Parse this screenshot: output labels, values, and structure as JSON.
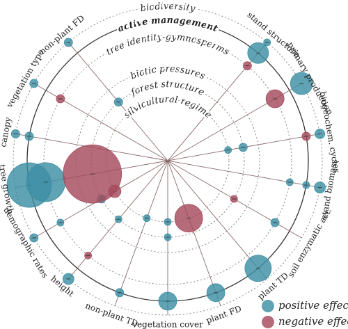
{
  "chart_data": {
    "type": "radial-bubble",
    "rings": [
      {
        "name": "silvicultural regime",
        "solid": false
      },
      {
        "name": "forest structure",
        "solid": false
      },
      {
        "name": "biotic pressures",
        "solid": false
      },
      {
        "name": "tree identity-gymnosperms",
        "solid": false
      },
      {
        "name": "active management",
        "solid": true
      },
      {
        "name": "biodiversity",
        "solid": false
      }
    ],
    "spokes": [
      "stand structure",
      "primary production",
      "biogeochem. cycles",
      "stand biomass",
      "soil enzymatic act.",
      "plant TD",
      "plant FD",
      "vegetation cover",
      "non-plant TD",
      "height",
      "demographic rates",
      "tree growth",
      "canopy",
      "vegetation type",
      "non-plant FD"
    ],
    "series": [
      {
        "name": "positive effect",
        "color": "#3d8fa3",
        "points": [
          {
            "spoke": 0,
            "ring": 5,
            "size": 5
          },
          {
            "spoke": 0,
            "ring": 4,
            "size": 15
          },
          {
            "spoke": 1,
            "ring": 5,
            "size": 16
          },
          {
            "spoke": 2,
            "ring": 5,
            "size": 7
          },
          {
            "spoke": 2,
            "ring": 1,
            "size": 6
          },
          {
            "spoke": 2,
            "ring": 0,
            "size": 5
          },
          {
            "spoke": 3,
            "ring": 5,
            "size": 8
          },
          {
            "spoke": 3,
            "ring": 4,
            "size": 5
          },
          {
            "spoke": 3,
            "ring": 3,
            "size": 5
          },
          {
            "spoke": 4,
            "ring": 3,
            "size": 6
          },
          {
            "spoke": 5,
            "ring": 4,
            "size": 19
          },
          {
            "spoke": 6,
            "ring": 4,
            "size": 13
          },
          {
            "spoke": 7,
            "ring": 4,
            "size": 13
          },
          {
            "spoke": 7,
            "ring": 1,
            "size": 5
          },
          {
            "spoke": 7,
            "ring": 0,
            "size": 5
          },
          {
            "spoke": 8,
            "ring": 4,
            "size": 6
          },
          {
            "spoke": 8,
            "ring": 0,
            "size": 5
          },
          {
            "spoke": 9,
            "ring": 5,
            "size": 8
          },
          {
            "spoke": 9,
            "ring": 1,
            "size": 5
          },
          {
            "spoke": 10,
            "ring": 5,
            "size": 6
          },
          {
            "spoke": 10,
            "ring": 3,
            "size": 5
          },
          {
            "spoke": 10,
            "ring": 1,
            "size": 6
          },
          {
            "spoke": 11,
            "ring": 4,
            "size": 32
          },
          {
            "spoke": 11,
            "ring": 3,
            "size": 28
          },
          {
            "spoke": 12,
            "ring": 5,
            "size": 6
          },
          {
            "spoke": 12,
            "ring": 4,
            "size": 6
          },
          {
            "spoke": 13,
            "ring": 5,
            "size": 6
          },
          {
            "spoke": 14,
            "ring": 5,
            "size": 6
          },
          {
            "spoke": 14,
            "ring": 1,
            "size": 6
          }
        ]
      },
      {
        "name": "negative effect",
        "color": "#a54a5d",
        "points": [
          {
            "spoke": 0,
            "ring": 3,
            "size": 6
          },
          {
            "spoke": 1,
            "ring": 3,
            "size": 13
          },
          {
            "spoke": 2,
            "ring": 4,
            "size": 6
          },
          {
            "spoke": 4,
            "ring": 1,
            "size": 5
          },
          {
            "spoke": 6,
            "ring": 0,
            "size": 20
          },
          {
            "spoke": 9,
            "ring": 3,
            "size": 5
          },
          {
            "spoke": 10,
            "ring": 0,
            "size": 9
          },
          {
            "spoke": 11,
            "ring": 1,
            "size": 42
          },
          {
            "spoke": 13,
            "ring": 3,
            "size": 6
          }
        ]
      }
    ]
  }
}
